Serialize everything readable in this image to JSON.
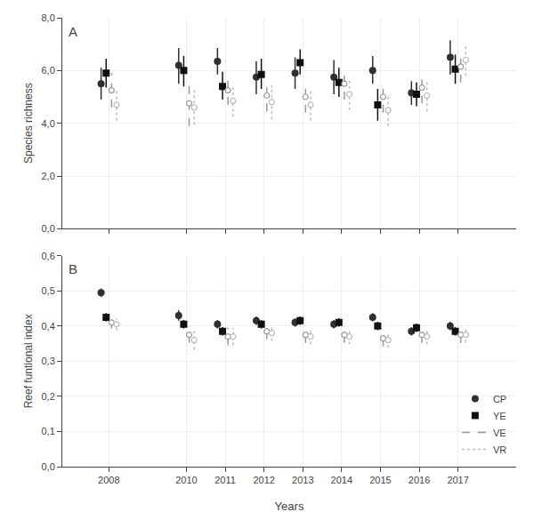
{
  "chart_data": [
    {
      "type": "scatter",
      "title": "A",
      "ylabel": "Species richness",
      "x": [
        2008,
        2010,
        2011,
        2012,
        2013,
        2014,
        2015,
        2016,
        2017
      ],
      "xlim": [
        2006.8,
        2018.5
      ],
      "xticks": [
        2008,
        2010,
        2011,
        2012,
        2013,
        2014,
        2015,
        2016,
        2017
      ],
      "ylim": [
        0,
        8
      ],
      "yticks": [
        {
          "value": 0,
          "label": "0,0"
        },
        {
          "value": 2,
          "label": "2,0"
        },
        {
          "value": 4,
          "label": "4,0"
        },
        {
          "value": 6,
          "label": "6,0"
        },
        {
          "value": 8,
          "label": "8,0"
        }
      ],
      "tick_labels": "y",
      "series": [
        {
          "name": "CP",
          "color": "#303030",
          "marker": "circle",
          "line_style": "solid",
          "values": [
            5.5,
            6.2,
            6.35,
            5.75,
            5.9,
            5.75,
            6.0,
            5.15,
            6.5
          ],
          "lo": [
            4.9,
            5.5,
            5.85,
            5.1,
            5.3,
            5.1,
            5.5,
            4.7,
            5.85
          ],
          "hi": [
            6.1,
            6.85,
            6.85,
            6.35,
            6.5,
            6.4,
            6.55,
            5.6,
            7.15
          ]
        },
        {
          "name": "YE",
          "color": "#101010",
          "marker": "square",
          "line_style": "solid",
          "values": [
            5.9,
            6.0,
            5.4,
            5.85,
            6.3,
            5.55,
            4.7,
            5.1,
            6.05
          ],
          "lo": [
            5.35,
            5.4,
            4.9,
            5.3,
            5.85,
            5.0,
            4.1,
            4.65,
            5.5
          ],
          "hi": [
            6.45,
            6.55,
            5.95,
            6.45,
            6.8,
            6.1,
            5.3,
            5.55,
            6.6
          ]
        },
        {
          "name": "VE",
          "color": "#999999",
          "marker": "circle-open",
          "line_style": "dashed",
          "values": [
            5.25,
            4.75,
            5.25,
            5.05,
            5.0,
            5.5,
            5.0,
            5.35,
            6.15
          ],
          "lo": [
            4.6,
            3.9,
            4.7,
            4.45,
            4.4,
            4.9,
            4.4,
            4.75,
            5.55
          ],
          "hi": [
            5.9,
            5.6,
            5.8,
            5.65,
            5.6,
            6.1,
            5.6,
            5.95,
            6.75
          ]
        },
        {
          "name": "VR",
          "color": "#bbbbbb",
          "marker": "circle-open",
          "line_style": "dotted",
          "values": [
            4.7,
            4.6,
            4.85,
            4.8,
            4.7,
            5.1,
            4.5,
            5.05,
            6.4
          ],
          "lo": [
            4.1,
            3.95,
            4.25,
            4.15,
            4.1,
            4.5,
            3.9,
            4.45,
            5.8
          ],
          "hi": [
            5.3,
            5.25,
            5.45,
            5.45,
            5.3,
            5.7,
            5.1,
            5.65,
            7.0
          ]
        }
      ]
    },
    {
      "type": "scatter",
      "title": "B",
      "ylabel": "Reef funtional index",
      "xlabel": "Years",
      "x": [
        2008,
        2010,
        2011,
        2012,
        2013,
        2014,
        2015,
        2016,
        2017
      ],
      "xlim": [
        2006.8,
        2018.5
      ],
      "xticks": [
        2008,
        2010,
        2011,
        2012,
        2013,
        2014,
        2015,
        2016,
        2017
      ],
      "ylim": [
        0.0,
        0.6
      ],
      "yticks": [
        {
          "value": 0.0,
          "label": "0,0"
        },
        {
          "value": 0.1,
          "label": "0,1"
        },
        {
          "value": 0.2,
          "label": "0,2"
        },
        {
          "value": 0.3,
          "label": "0,3"
        },
        {
          "value": 0.4,
          "label": "0,4"
        },
        {
          "value": 0.5,
          "label": "0,5"
        },
        {
          "value": 0.6,
          "label": "0,6"
        }
      ],
      "legend": "lower right",
      "series": [
        {
          "name": "CP",
          "color": "#303030",
          "marker": "circle",
          "line_style": "solid",
          "values": [
            0.495,
            0.43,
            0.405,
            0.415,
            0.41,
            0.405,
            0.425,
            0.385,
            0.4
          ],
          "lo": [
            0.483,
            0.415,
            0.393,
            0.403,
            0.398,
            0.393,
            0.413,
            0.373,
            0.388
          ],
          "hi": [
            0.507,
            0.445,
            0.417,
            0.427,
            0.422,
            0.417,
            0.437,
            0.397,
            0.412
          ]
        },
        {
          "name": "YE",
          "color": "#101010",
          "marker": "square",
          "line_style": "solid",
          "values": [
            0.425,
            0.405,
            0.385,
            0.405,
            0.415,
            0.41,
            0.4,
            0.395,
            0.385
          ],
          "lo": [
            0.413,
            0.393,
            0.373,
            0.393,
            0.403,
            0.398,
            0.388,
            0.383,
            0.373
          ],
          "hi": [
            0.437,
            0.417,
            0.397,
            0.417,
            0.427,
            0.422,
            0.412,
            0.407,
            0.397
          ]
        },
        {
          "name": "VE",
          "color": "#999999",
          "marker": "circle-open",
          "line_style": "dashed",
          "values": [
            0.41,
            0.375,
            0.37,
            0.385,
            0.375,
            0.375,
            0.365,
            0.375,
            0.375
          ],
          "lo": [
            0.393,
            0.352,
            0.345,
            0.362,
            0.352,
            0.352,
            0.342,
            0.352,
            0.352
          ],
          "hi": [
            0.427,
            0.398,
            0.395,
            0.408,
            0.398,
            0.398,
            0.388,
            0.398,
            0.398
          ]
        },
        {
          "name": "VR",
          "color": "#bbbbbb",
          "marker": "circle-open",
          "line_style": "dotted",
          "values": [
            0.405,
            0.36,
            0.37,
            0.38,
            0.37,
            0.37,
            0.36,
            0.37,
            0.375
          ],
          "lo": [
            0.388,
            0.333,
            0.345,
            0.358,
            0.348,
            0.348,
            0.338,
            0.348,
            0.353
          ],
          "hi": [
            0.422,
            0.387,
            0.395,
            0.402,
            0.392,
            0.392,
            0.382,
            0.392,
            0.397
          ]
        }
      ]
    }
  ]
}
